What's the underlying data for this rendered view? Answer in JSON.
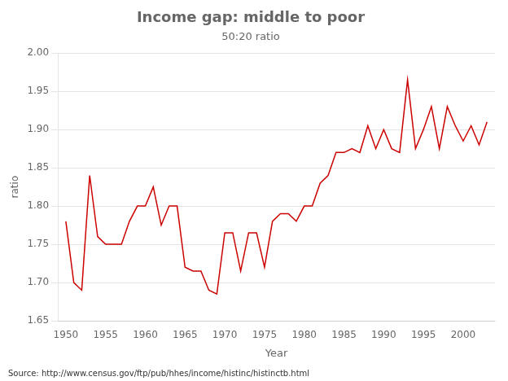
{
  "chart_data": {
    "type": "line",
    "title": "Income gap: middle to poor",
    "subtitle": "50:20 ratio",
    "xlabel": "Year",
    "ylabel": "ratio",
    "source": "Source: http://www.census.gov/ftp/pub/hhes/income/histinc/histinctb.html",
    "color": "#cc0000",
    "grid": "y",
    "xlim": [
      1949,
      2004
    ],
    "ylim": [
      1.65,
      2.0
    ],
    "xticks": [
      1950,
      1955,
      1960,
      1965,
      1970,
      1975,
      1980,
      1985,
      1990,
      1995,
      2000
    ],
    "yticks": [
      1.65,
      {
        "value": 1.7,
        "label": "1.70"
      },
      1.75,
      {
        "value": 1.8,
        "label": "1.80"
      },
      1.85,
      {
        "value": 1.9,
        "label": "1.90"
      },
      1.95,
      {
        "value": 2,
        "label": "2.00"
      }
    ],
    "x": [
      1950,
      1951,
      1952,
      1953,
      1954,
      1955,
      1956,
      1957,
      1958,
      1959,
      1960,
      1961,
      1962,
      1963,
      1964,
      1965,
      1966,
      1967,
      1968,
      1969,
      1970,
      1971,
      1972,
      1973,
      1974,
      1975,
      1976,
      1977,
      1978,
      1979,
      1980,
      1981,
      1982,
      1983,
      1984,
      1985,
      1986,
      1987,
      1988,
      1989,
      1990,
      1991,
      1992,
      1993,
      1994,
      1995,
      1996,
      1997,
      1998,
      1999,
      2000,
      2001,
      2002,
      2003
    ],
    "values": [
      1.78,
      1.7,
      1.69,
      1.84,
      1.76,
      1.75,
      1.75,
      1.75,
      1.78,
      1.8,
      1.8,
      1.825,
      1.775,
      1.8,
      1.8,
      1.72,
      1.715,
      1.715,
      1.69,
      1.685,
      1.765,
      1.765,
      1.715,
      1.765,
      1.765,
      1.72,
      1.78,
      1.79,
      1.79,
      1.78,
      1.8,
      1.8,
      1.83,
      1.84,
      1.87,
      1.87,
      1.875,
      1.87,
      1.905,
      1.875,
      1.9,
      1.875,
      1.87,
      1.965,
      1.875,
      1.9,
      1.93,
      1.875,
      1.93,
      1.905,
      1.885,
      1.905,
      1.88,
      1.91
    ]
  }
}
